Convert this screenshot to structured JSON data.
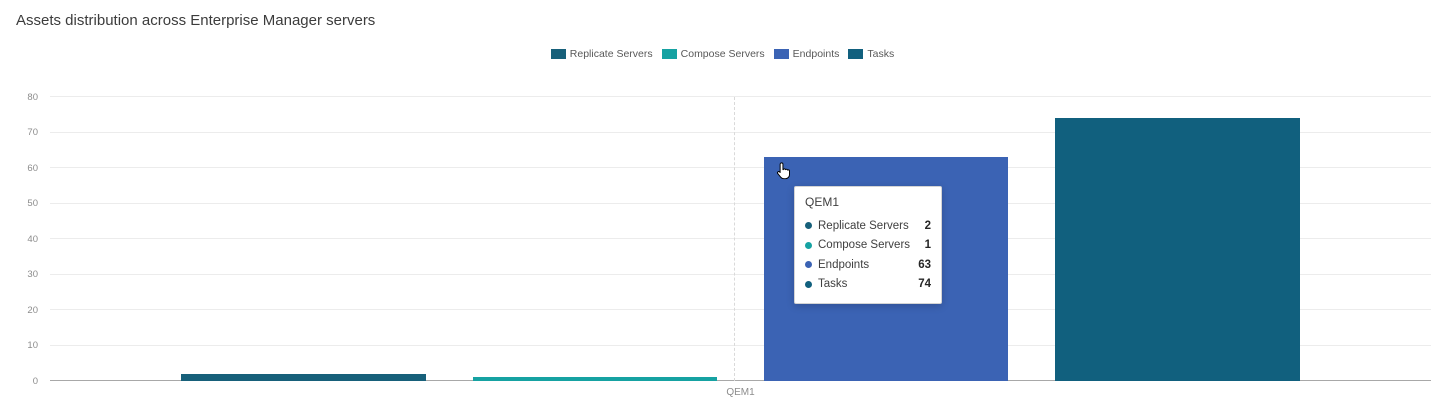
{
  "title": "Assets distribution across Enterprise Manager servers",
  "legend": {
    "items": [
      {
        "label": "Replicate Servers",
        "color": "#17607a"
      },
      {
        "label": "Compose Servers",
        "color": "#16a2a2"
      },
      {
        "label": "Endpoints",
        "color": "#3b63b4"
      },
      {
        "label": "Tasks",
        "color": "#11607e"
      }
    ]
  },
  "chart_data": {
    "type": "bar",
    "title": "Assets distribution across Enterprise Manager servers",
    "categories": [
      "QEM1"
    ],
    "series": [
      {
        "name": "Replicate Servers",
        "values": [
          2
        ],
        "color": "#17607a"
      },
      {
        "name": "Compose Servers",
        "values": [
          1
        ],
        "color": "#16a2a2"
      },
      {
        "name": "Endpoints",
        "values": [
          63
        ],
        "color": "#3b63b4"
      },
      {
        "name": "Tasks",
        "values": [
          74
        ],
        "color": "#11607e"
      }
    ],
    "xlabel": "",
    "ylabel": "",
    "ylim": [
      0,
      80
    ],
    "ytick_step": 10,
    "grid": true,
    "legend_position": "top-center"
  },
  "tooltip": {
    "title": "QEM1",
    "rows": [
      {
        "label": "Replicate Servers",
        "value": "2",
        "color": "#17607a"
      },
      {
        "label": "Compose Servers",
        "value": "1",
        "color": "#16a2a2"
      },
      {
        "label": "Endpoints",
        "value": "63",
        "color": "#3b63b4"
      },
      {
        "label": "Tasks",
        "value": "74",
        "color": "#11607e"
      }
    ]
  },
  "icons": {
    "cursor": "hand-pointer-icon"
  }
}
